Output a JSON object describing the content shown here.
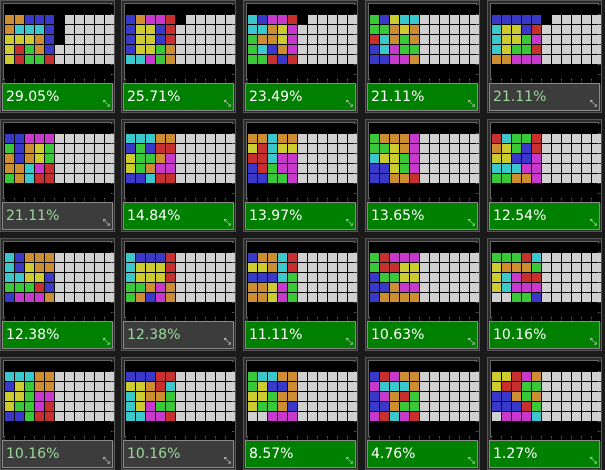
{
  "colors": {
    ".": "#000000",
    "x": "#d0d0d0",
    "B": "#3a38c8",
    "C": "#3ac8cc",
    "O": "#cc8e30",
    "Y": "#cccc30",
    "G": "#38c838",
    "M": "#c838cc",
    "R": "#c83030",
    "best": "#008000",
    "neutral": "#3c3c3c",
    "best_text": "#ffffff",
    "neutral_text": "#9bd89b"
  },
  "icons": {
    "resize": "resize-grip-icon"
  },
  "tiles": [
    {
      "percent": "29.05%",
      "state": "best",
      "board": [
        "...........",
        "OOBBB.xxxxx",
        "OCCCB.xxxxx",
        "YYYOB.xxxxx",
        "YRGOBxxxxxx",
        "YRGGRxxxxxx",
        "...........",
        "..........."
      ]
    },
    {
      "percent": "25.71%",
      "state": "best",
      "board": [
        "...........",
        "BOMMR.xxxxx",
        "BYYBRxxxxxx",
        "BYYBRxxxxxx",
        "BYYGOxxxxxx",
        "CCMGOxxxxxx",
        "...........",
        "..........."
      ]
    },
    {
      "percent": "23.49%",
      "state": "best",
      "board": [
        "...........",
        "CBMMR.xxxxx",
        "CCOYMxxxxxx",
        "GOOYMxxxxxx",
        "GCBOMxxxxxx",
        "GGRBRxxxxxx",
        "...........",
        "..........."
      ]
    },
    {
      "percent": "21.11%",
      "state": "best",
      "board": [
        "...........",
        "GBYCCxxxxxx",
        "GGOYOxxxxxx",
        "RCOGOxxxxxx",
        "BCMGGxxxxxx",
        "BBMMOxxxxxx",
        "...........",
        "..........."
      ]
    },
    {
      "percent": "21.11%",
      "state": "neutral",
      "board": [
        "...........",
        "BBBBB.xxxxx",
        "CYYBRxxxxxx",
        "CYYGMxxxxxx",
        "CYGGRxxxxxx",
        "OOMMMxxxxxx",
        "...........",
        "..........."
      ]
    },
    {
      "percent": "21.11%",
      "state": "neutral",
      "board": [
        "...........",
        "BBMMMxxxxxx",
        "GBOYGxxxxxx",
        "OBOYGxxxxxx",
        "OOCMRxxxxxx",
        "GOCRRxxxxxx",
        "...........",
        "..........."
      ]
    },
    {
      "percent": "14.84%",
      "state": "best",
      "board": [
        "...........",
        "CCCOOxxxxxx",
        "BGBRRxxxxxx",
        "YGGOMxxxxxx",
        "YGOMMxxxxxx",
        "BBCRRxxxxxx",
        "...........",
        "..........."
      ]
    },
    {
      "percent": "13.97%",
      "state": "best",
      "board": [
        "...........",
        "OOCOOxxxxxx",
        "YRCYYxxxxxx",
        "RRCMMxxxxxx",
        "BRGMMxxxxxx",
        "BBGGMxxxxxx",
        "...........",
        "..........."
      ]
    },
    {
      "percent": "13.65%",
      "state": "best",
      "board": [
        "...........",
        "GOOOMxxxxxx",
        "GGYOMxxxxxx",
        "CYYGMxxxxxx",
        "BBYGMxxxxxx",
        "BBOORxxxxxx",
        "...........",
        "..........."
      ]
    },
    {
      "percent": "12.54%",
      "state": "best",
      "board": [
        "...........",
        "RCGGRxxxxxx",
        "OYGBRxxxxxx",
        "YYBBMxxxxxx",
        "CCCMMxxxxxx",
        "GGOOMxxxxxx",
        "...........",
        "..........."
      ]
    },
    {
      "percent": "12.38%",
      "state": "best",
      "board": [
        "...........",
        "CBOOOxxxxxx",
        "CBYOOxxxxxx",
        "CCYYBxxxxxx",
        "GGGRBxxxxxx",
        "BMMMOxxxxxx",
        "...........",
        "..........."
      ]
    },
    {
      "percent": "12.38%",
      "state": "neutral",
      "board": [
        "...........",
        "CBBBRxxxxxx",
        "CYYYRxxxxxx",
        "CYYYRxxxxxx",
        "GGOMOxxxxxx",
        "GOBMOxxxxxx",
        "...........",
        "..........."
      ]
    },
    {
      "percent": "11.11%",
      "state": "best",
      "board": [
        "...........",
        "BOOCRxxxxxx",
        "YYOCRxxxxxx",
        "BBBCGxxxxxx",
        "OOYMGxxxxxx",
        "OOYMGxxxxxx",
        "...........",
        "..........."
      ]
    },
    {
      "percent": "10.63%",
      "state": "best",
      "board": [
        "...........",
        "GRMMMxxxxxx",
        "GRRYYxxxxxx",
        "BGGYYxxxxxx",
        "BBOMMxxxxxx",
        "BOOOOxxxxxx",
        "...........",
        "..........."
      ]
    },
    {
      "percent": "10.16%",
      "state": "best",
      "board": [
        "...........",
        "GGGRCxxxxxx",
        "YOOOGxxxxxx",
        "YCMRRxxxxxx",
        "YCMMMxxxxxx",
        "xxGGBxxxxxx",
        "...........",
        "..........."
      ]
    },
    {
      "percent": "10.16%",
      "state": "neutral",
      "board": [
        "...........",
        "CCCOOxxxxxx",
        "BYGOOxxxxxx",
        "YYGMMxxxxxx",
        "YGGMRxxxxxx",
        "BBGRRxxxxxx",
        "...........",
        "..........."
      ]
    },
    {
      "percent": "10.16%",
      "state": "neutral",
      "board": [
        "...........",
        "BBBRRxxxxxx",
        "YYORCxxxxxx",
        "CYOOGxxxxxx",
        "CYMGGxxxxxx",
        "CCMMRxxxxxx",
        "...........",
        "..........."
      ]
    },
    {
      "percent": "8.57%",
      "state": "best",
      "board": [
        "...........",
        "GCCOOxxxxxx",
        "GYBBOxxxxxx",
        "YYGOOxxxxxx",
        "YGGOBxxxxxx",
        "xxMMMxxxxxx",
        "...........",
        "..........."
      ]
    },
    {
      "percent": "4.76%",
      "state": "best",
      "board": [
        "...........",
        "BRMOOxxxxxx",
        "MCCCOxxxxxx",
        "BMORGxxxxxx",
        "BBOGGxxxxxx",
        "MRCMRxxxxxx",
        "...........",
        "..........."
      ]
    },
    {
      "percent": "1.27%",
      "state": "best",
      "board": [
        "...........",
        "YYRMOxxxxxx",
        "YRRGGxxxxxx",
        "BBOGOxxxxxx",
        "BBBRGxxxxxx",
        "xMMMCxxxxxx",
        "...........",
        "..........."
      ]
    }
  ]
}
